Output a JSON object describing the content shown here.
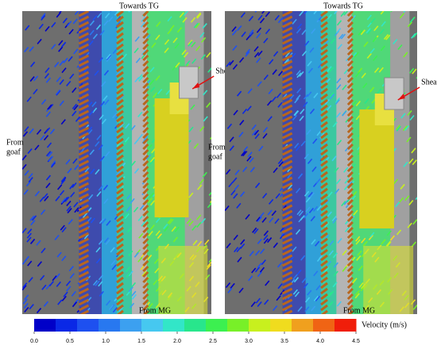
{
  "panels": [
    {
      "top_label": "Towards TG",
      "shearer_label": "Shearer",
      "side_label": [
        "From",
        "goaf"
      ],
      "bottom_label": "From MG"
    },
    {
      "top_label": "Towards TG",
      "shearer_label": "Shearer",
      "side_label": [
        "From",
        "goaf"
      ],
      "bottom_label": "From MG"
    }
  ],
  "colorbar": {
    "title": "Velocity (m/s)",
    "ticks": [
      {
        "value": 0,
        "label": "0.0"
      },
      {
        "value": 0.5,
        "label": "0.5"
      },
      {
        "value": 1,
        "label": "1.0"
      },
      {
        "value": 1.5,
        "label": "1.5"
      },
      {
        "value": 2,
        "label": "2.0"
      },
      {
        "value": 2.5,
        "label": "2.5"
      },
      {
        "value": 3,
        "label": "3.0"
      },
      {
        "value": 3.5,
        "label": "3.5"
      },
      {
        "value": 4,
        "label": "4.0"
      },
      {
        "value": 4.5,
        "label": "4.5"
      }
    ],
    "colors": [
      "#0000c8",
      "#0a28e6",
      "#1e50f0",
      "#2878f0",
      "#3ca0f0",
      "#46c8f0",
      "#32e6c8",
      "#28e68c",
      "#3cf050",
      "#78f028",
      "#c8f01e",
      "#f0dc1e",
      "#f0a01e",
      "#f06414",
      "#f01e0a"
    ]
  }
}
